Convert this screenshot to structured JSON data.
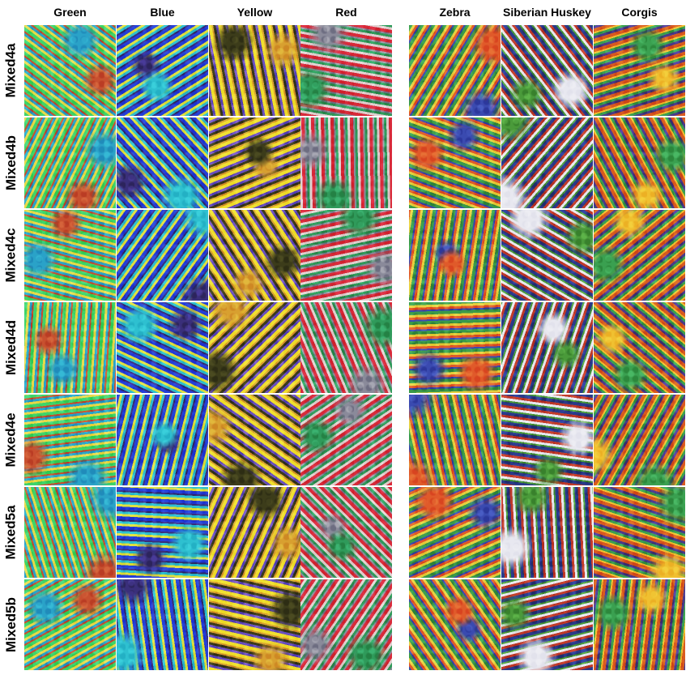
{
  "columns": {
    "color": [
      "Green",
      "Blue",
      "Yellow",
      "Red"
    ],
    "class": [
      "Zebra",
      "Siberian Huskey",
      "Corgis"
    ]
  },
  "rows": [
    "Mixed4a",
    "Mixed4b",
    "Mixed4c",
    "Mixed4d",
    "Mixed4e",
    "Mixed5a",
    "Mixed5b"
  ],
  "palettes": {
    "Green": [
      "#3fd46a",
      "#2aa2c8",
      "#c8502f",
      "#e7d94a"
    ],
    "Blue": [
      "#2640d8",
      "#2ec0d0",
      "#3a2f7a",
      "#e0e040"
    ],
    "Yellow": [
      "#f0e030",
      "#3c3c1a",
      "#d8a030",
      "#6a50c0"
    ],
    "Red": [
      "#d82a3a",
      "#2f9a5a",
      "#8a8a9a",
      "#e0d0d0"
    ],
    "Zebra": [
      "#3a9a4a",
      "#e05a2a",
      "#3a4ab0",
      "#e6d040"
    ],
    "Siberian Huskey": [
      "#2a3a8a",
      "#e8e8f0",
      "#4a9a3a",
      "#c03a2a"
    ],
    "Corgis": [
      "#d85a20",
      "#3aa050",
      "#f0c030",
      "#4a3a8a"
    ]
  }
}
